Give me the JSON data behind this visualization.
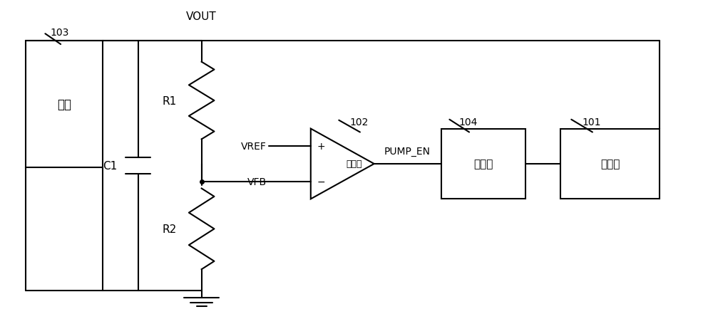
{
  "bg_color": "#ffffff",
  "line_color": "#000000",
  "text_color": "#000000",
  "vout_label": "VOUT",
  "load_label": "负载",
  "load_ref": "103",
  "cap_label": "C1",
  "r1_label": "R1",
  "r2_label": "R2",
  "comp_label": "比较器",
  "comp_ref": "102",
  "vref_label": "VREF",
  "vfb_label": "VFB",
  "pump_en_label": "PUMP_EN",
  "osc_label": "振荡器",
  "osc_ref": "104",
  "pump_label": "电荷泉",
  "pump_ref": "101",
  "font_size": 11,
  "ref_font_size": 10
}
